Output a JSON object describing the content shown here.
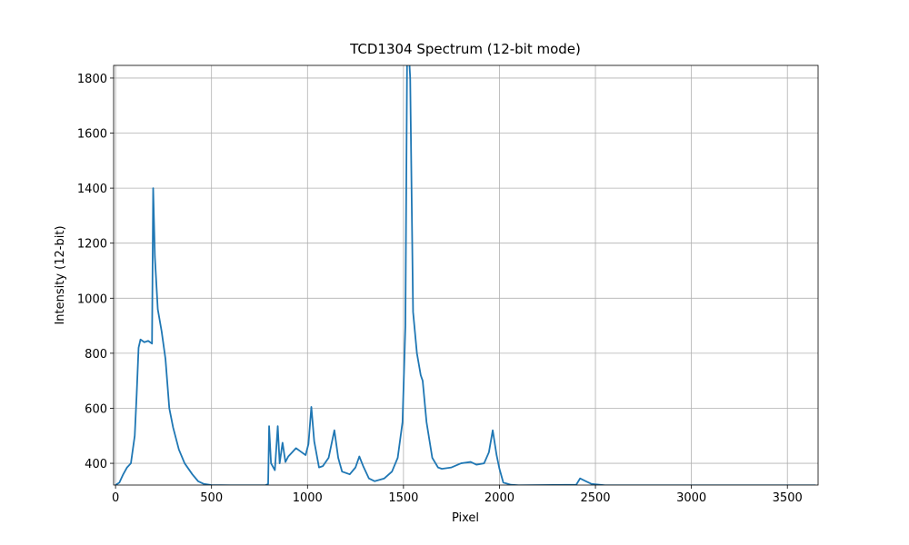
{
  "chart_data": {
    "type": "line",
    "title": "TCD1304 Spectrum (12-bit mode)",
    "xlabel": "Pixel",
    "ylabel": "Intensity (12-bit)",
    "x": [
      0,
      20,
      40,
      60,
      80,
      100,
      110,
      120,
      130,
      150,
      170,
      190,
      196,
      205,
      220,
      240,
      260,
      280,
      300,
      330,
      360,
      400,
      430,
      460,
      500,
      600,
      780,
      795,
      800,
      810,
      830,
      845,
      855,
      870,
      885,
      900,
      920,
      940,
      960,
      990,
      1005,
      1020,
      1035,
      1060,
      1080,
      1110,
      1140,
      1160,
      1180,
      1220,
      1250,
      1270,
      1290,
      1320,
      1350,
      1400,
      1440,
      1470,
      1495,
      1510,
      1520,
      1535,
      1550,
      1570,
      1590,
      1600,
      1620,
      1650,
      1680,
      1700,
      1750,
      1800,
      1850,
      1880,
      1920,
      1945,
      1965,
      1985,
      2000,
      2020,
      2060,
      2100,
      2400,
      2420,
      2450,
      2480,
      2550,
      2750,
      3647
    ],
    "series": [
      {
        "name": "Intensity",
        "color": "#1f77b4",
        "values": [
          321,
          330,
          360,
          385,
          400,
          500,
          650,
          820,
          850,
          840,
          845,
          835,
          1400,
          1150,
          960,
          880,
          780,
          600,
          530,
          450,
          400,
          360,
          335,
          325,
          321,
          320,
          320,
          325,
          535,
          400,
          375,
          535,
          400,
          475,
          405,
          425,
          440,
          455,
          445,
          430,
          470,
          605,
          480,
          385,
          390,
          420,
          520,
          420,
          370,
          360,
          385,
          425,
          390,
          345,
          335,
          345,
          370,
          420,
          550,
          900,
          2000,
          1800,
          950,
          800,
          720,
          700,
          550,
          420,
          385,
          380,
          385,
          400,
          405,
          395,
          400,
          440,
          520,
          430,
          380,
          330,
          322,
          320,
          322,
          345,
          335,
          325,
          320,
          320,
          320
        ]
      }
    ],
    "xlim": [
      -10,
      3660
    ],
    "ylim": [
      321,
      1846
    ],
    "xticks": [
      0,
      500,
      1000,
      1500,
      2000,
      2500,
      3000,
      3500
    ],
    "yticks": [
      400,
      600,
      800,
      1000,
      1200,
      1400,
      1600,
      1800
    ],
    "grid": true
  }
}
